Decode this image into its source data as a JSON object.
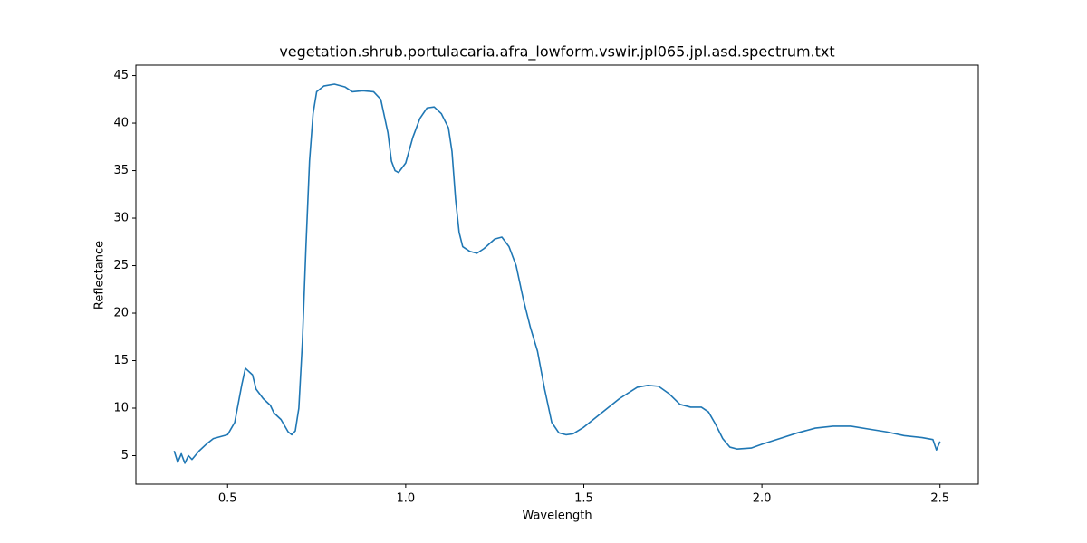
{
  "chart_data": {
    "type": "line",
    "title": "vegetation.shrub.portulacaria.afra_lowform.vswir.jpl065.jpl.asd.spectrum.txt",
    "x_label": "Wavelength",
    "y_label": "Reflectance",
    "xlim": [
      0.2425,
      2.6075
    ],
    "ylim": [
      2.0,
      46.1
    ],
    "xticks": [
      0.5,
      {
        "value": 1,
        "label": "1.0"
      },
      1.5,
      {
        "value": 2,
        "label": "2.0"
      },
      2.5
    ],
    "yticks": [
      5,
      10,
      15,
      20,
      25,
      30,
      35,
      40,
      45
    ],
    "grid": false,
    "series": [
      {
        "name": "Reflectance",
        "color": "#1f77b4",
        "x": [
          0.35,
          0.36,
          0.37,
          0.38,
          0.39,
          0.4,
          0.42,
          0.44,
          0.46,
          0.48,
          0.5,
          0.52,
          0.54,
          0.55,
          0.57,
          0.58,
          0.6,
          0.62,
          0.63,
          0.65,
          0.67,
          0.68,
          0.69,
          0.7,
          0.71,
          0.72,
          0.73,
          0.74,
          0.75,
          0.77,
          0.8,
          0.83,
          0.85,
          0.88,
          0.91,
          0.93,
          0.95,
          0.96,
          0.97,
          0.98,
          1.0,
          1.02,
          1.04,
          1.06,
          1.08,
          1.1,
          1.12,
          1.13,
          1.14,
          1.15,
          1.16,
          1.18,
          1.2,
          1.22,
          1.25,
          1.27,
          1.29,
          1.31,
          1.33,
          1.35,
          1.37,
          1.39,
          1.41,
          1.43,
          1.45,
          1.47,
          1.5,
          1.55,
          1.6,
          1.65,
          1.68,
          1.71,
          1.74,
          1.77,
          1.8,
          1.83,
          1.85,
          1.87,
          1.89,
          1.91,
          1.93,
          1.97,
          2.0,
          2.05,
          2.1,
          2.15,
          2.2,
          2.25,
          2.3,
          2.35,
          2.4,
          2.45,
          2.48,
          2.49,
          2.5
        ],
        "values": [
          5.5,
          4.3,
          5.2,
          4.2,
          5.0,
          4.6,
          5.5,
          6.2,
          6.8,
          7.0,
          7.2,
          8.5,
          12.5,
          14.2,
          13.5,
          12.0,
          11.0,
          10.3,
          9.5,
          8.8,
          7.5,
          7.2,
          7.6,
          10,
          17,
          27,
          36,
          41,
          43.3,
          43.9,
          44.1,
          43.8,
          43.3,
          43.4,
          43.3,
          42.5,
          39,
          36,
          35,
          34.8,
          35.8,
          38.5,
          40.5,
          41.6,
          41.7,
          41,
          39.5,
          37,
          32,
          28.5,
          27,
          26.5,
          26.3,
          26.8,
          27.8,
          28,
          27,
          25,
          21.5,
          18.5,
          16,
          12,
          8.5,
          7.4,
          7.2,
          7.3,
          8,
          9.5,
          11,
          12.2,
          12.4,
          12.3,
          11.5,
          10.4,
          10.1,
          10.1,
          9.6,
          8.3,
          6.8,
          5.9,
          5.7,
          5.8,
          6.2,
          6.8,
          7.4,
          7.9,
          8.1,
          8.1,
          7.8,
          7.5,
          7.1,
          6.9,
          6.7,
          5.6,
          6.5
        ]
      }
    ]
  }
}
